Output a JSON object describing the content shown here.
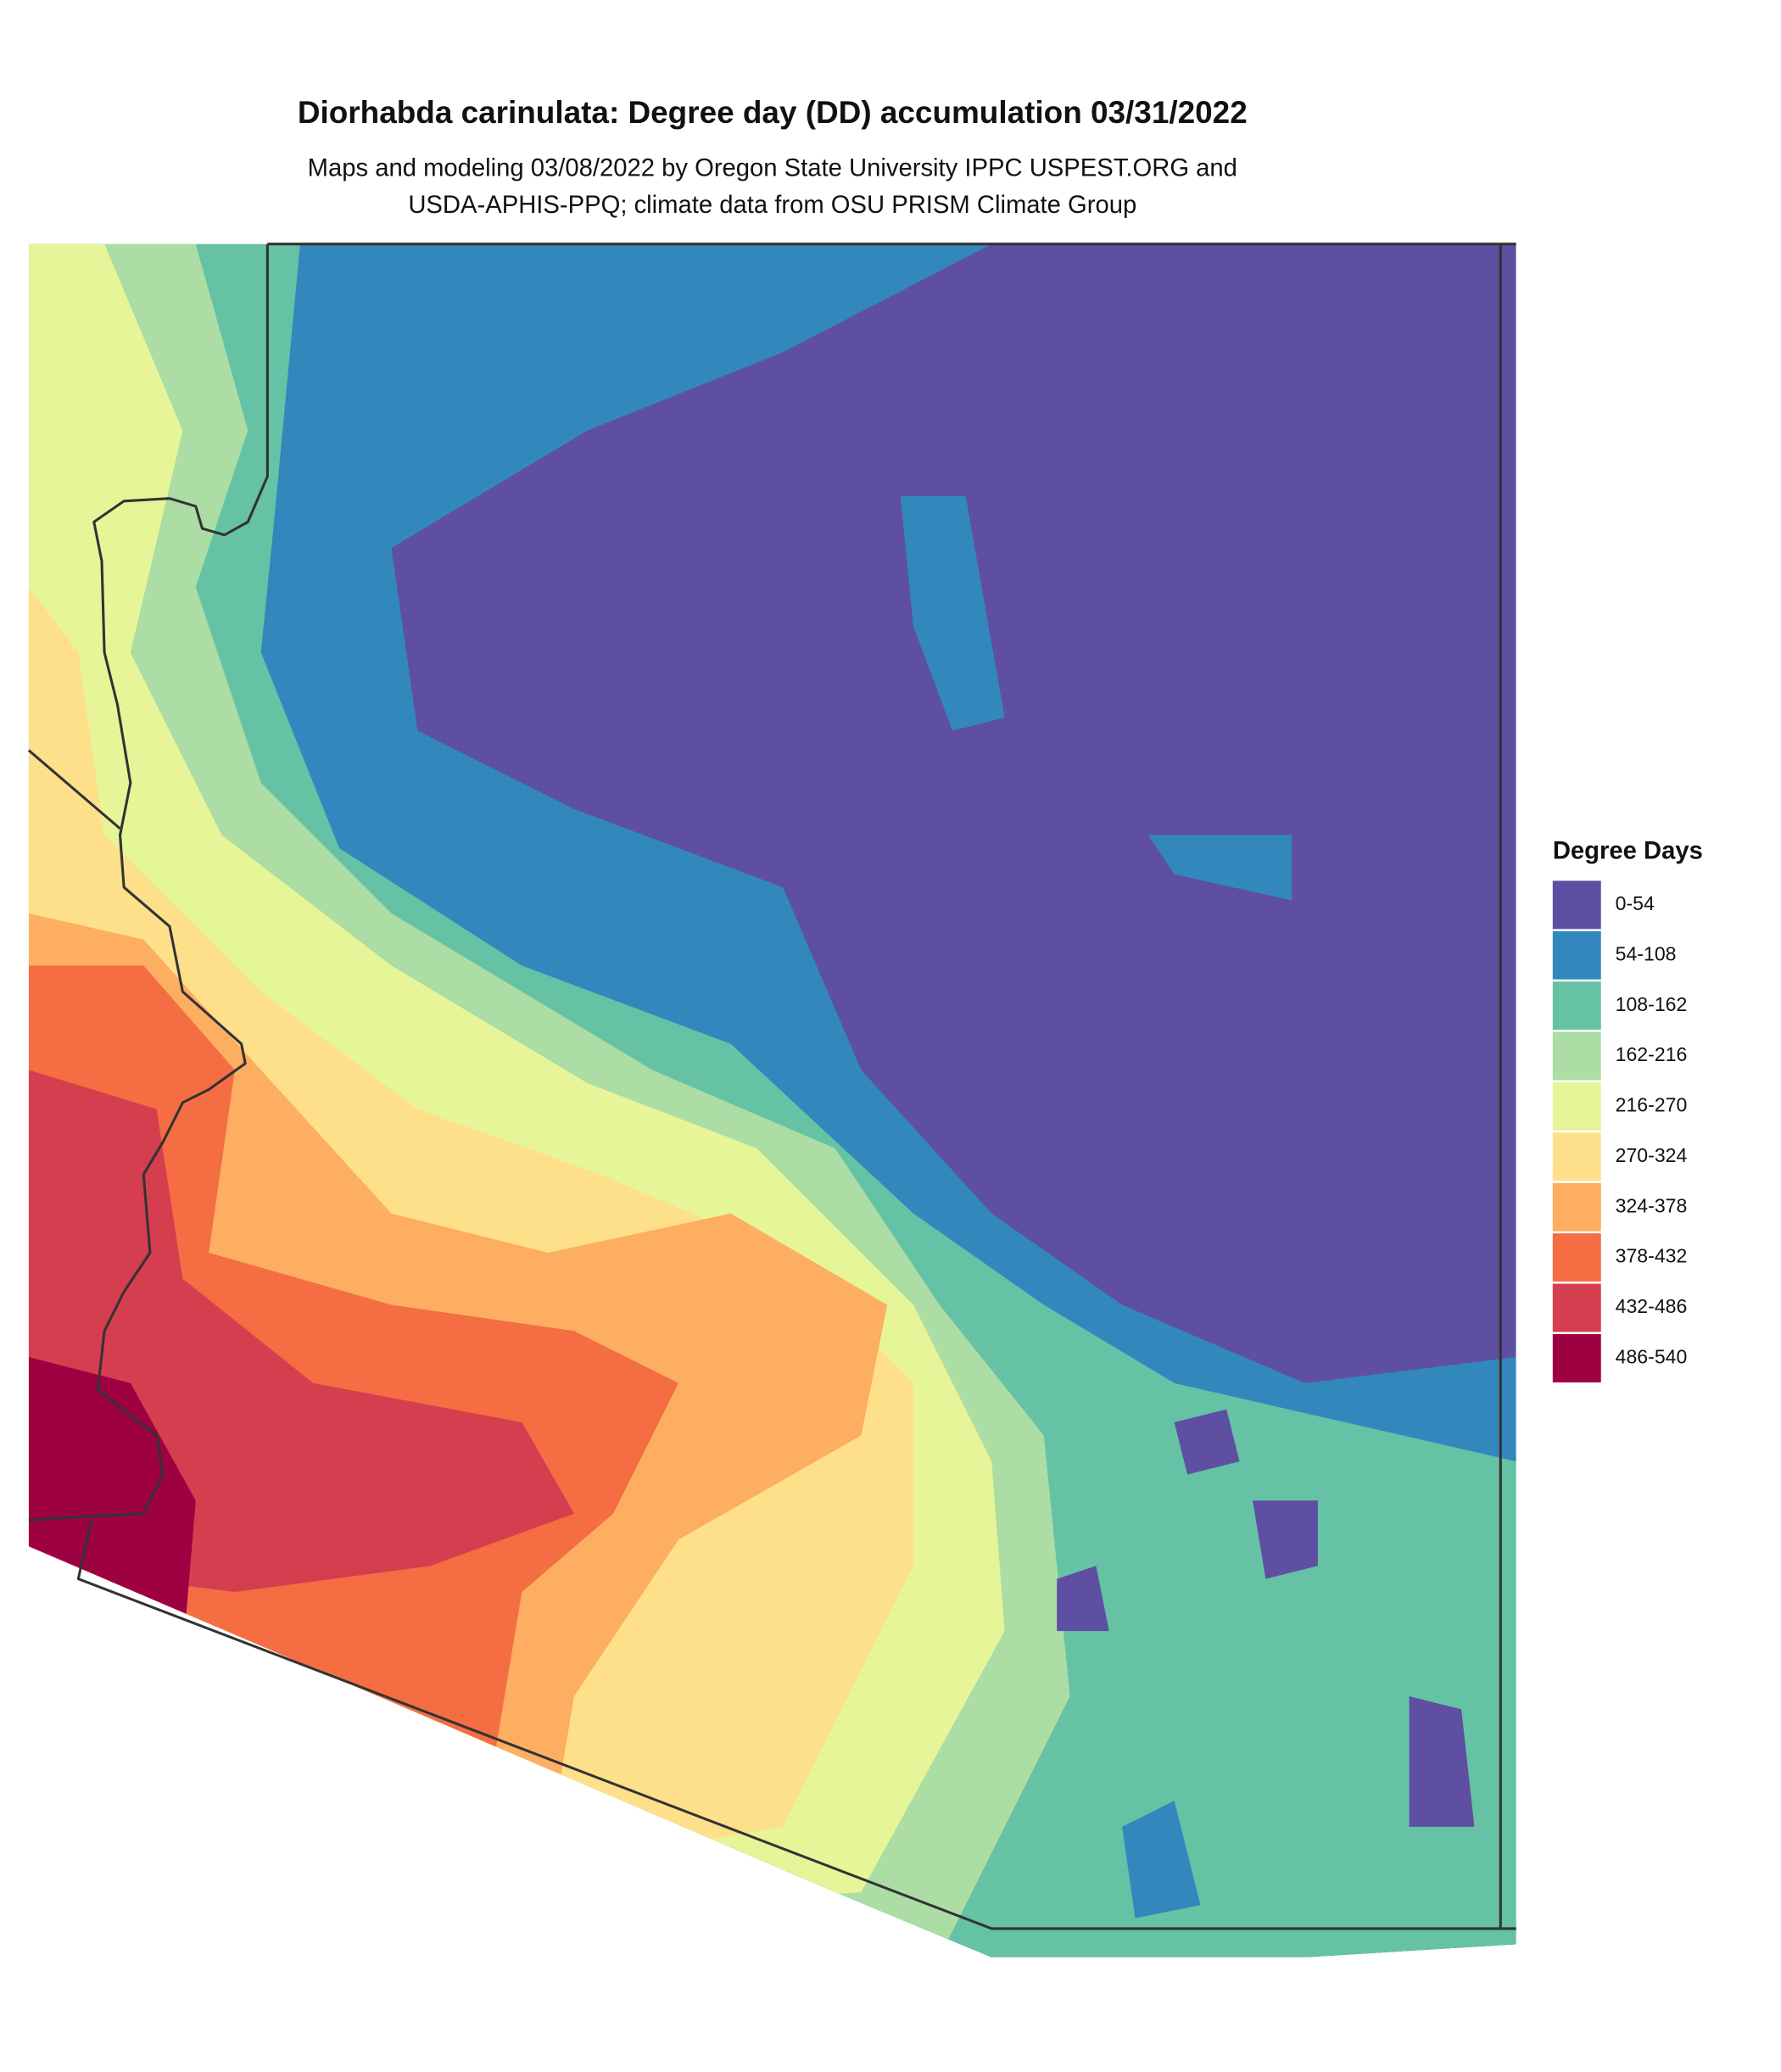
{
  "title": "Diorhabda carinulata: Degree day (DD) accumulation 03/31/2022",
  "subtitle": [
    "Maps and modeling 03/08/2022 by Oregon State University IPPC USPEST.ORG and",
    "USDA-APHIS-PPQ; climate data from OSU PRISM Climate Group"
  ],
  "legend": {
    "title": "Degree Days",
    "items": [
      {
        "label": "0-54",
        "color": "#5e4fa2"
      },
      {
        "label": "54-108",
        "color": "#3288bd"
      },
      {
        "label": "108-162",
        "color": "#66c2a5"
      },
      {
        "label": "162-216",
        "color": "#abdda4"
      },
      {
        "label": "216-270",
        "color": "#e6f598"
      },
      {
        "label": "270-324",
        "color": "#fee08b"
      },
      {
        "label": "324-378",
        "color": "#fdae61"
      },
      {
        "label": "378-432",
        "color": "#f46d43"
      },
      {
        "label": "432-486",
        "color": "#d53e4f"
      },
      {
        "label": "486-540",
        "color": "#9e0142"
      }
    ]
  }
}
